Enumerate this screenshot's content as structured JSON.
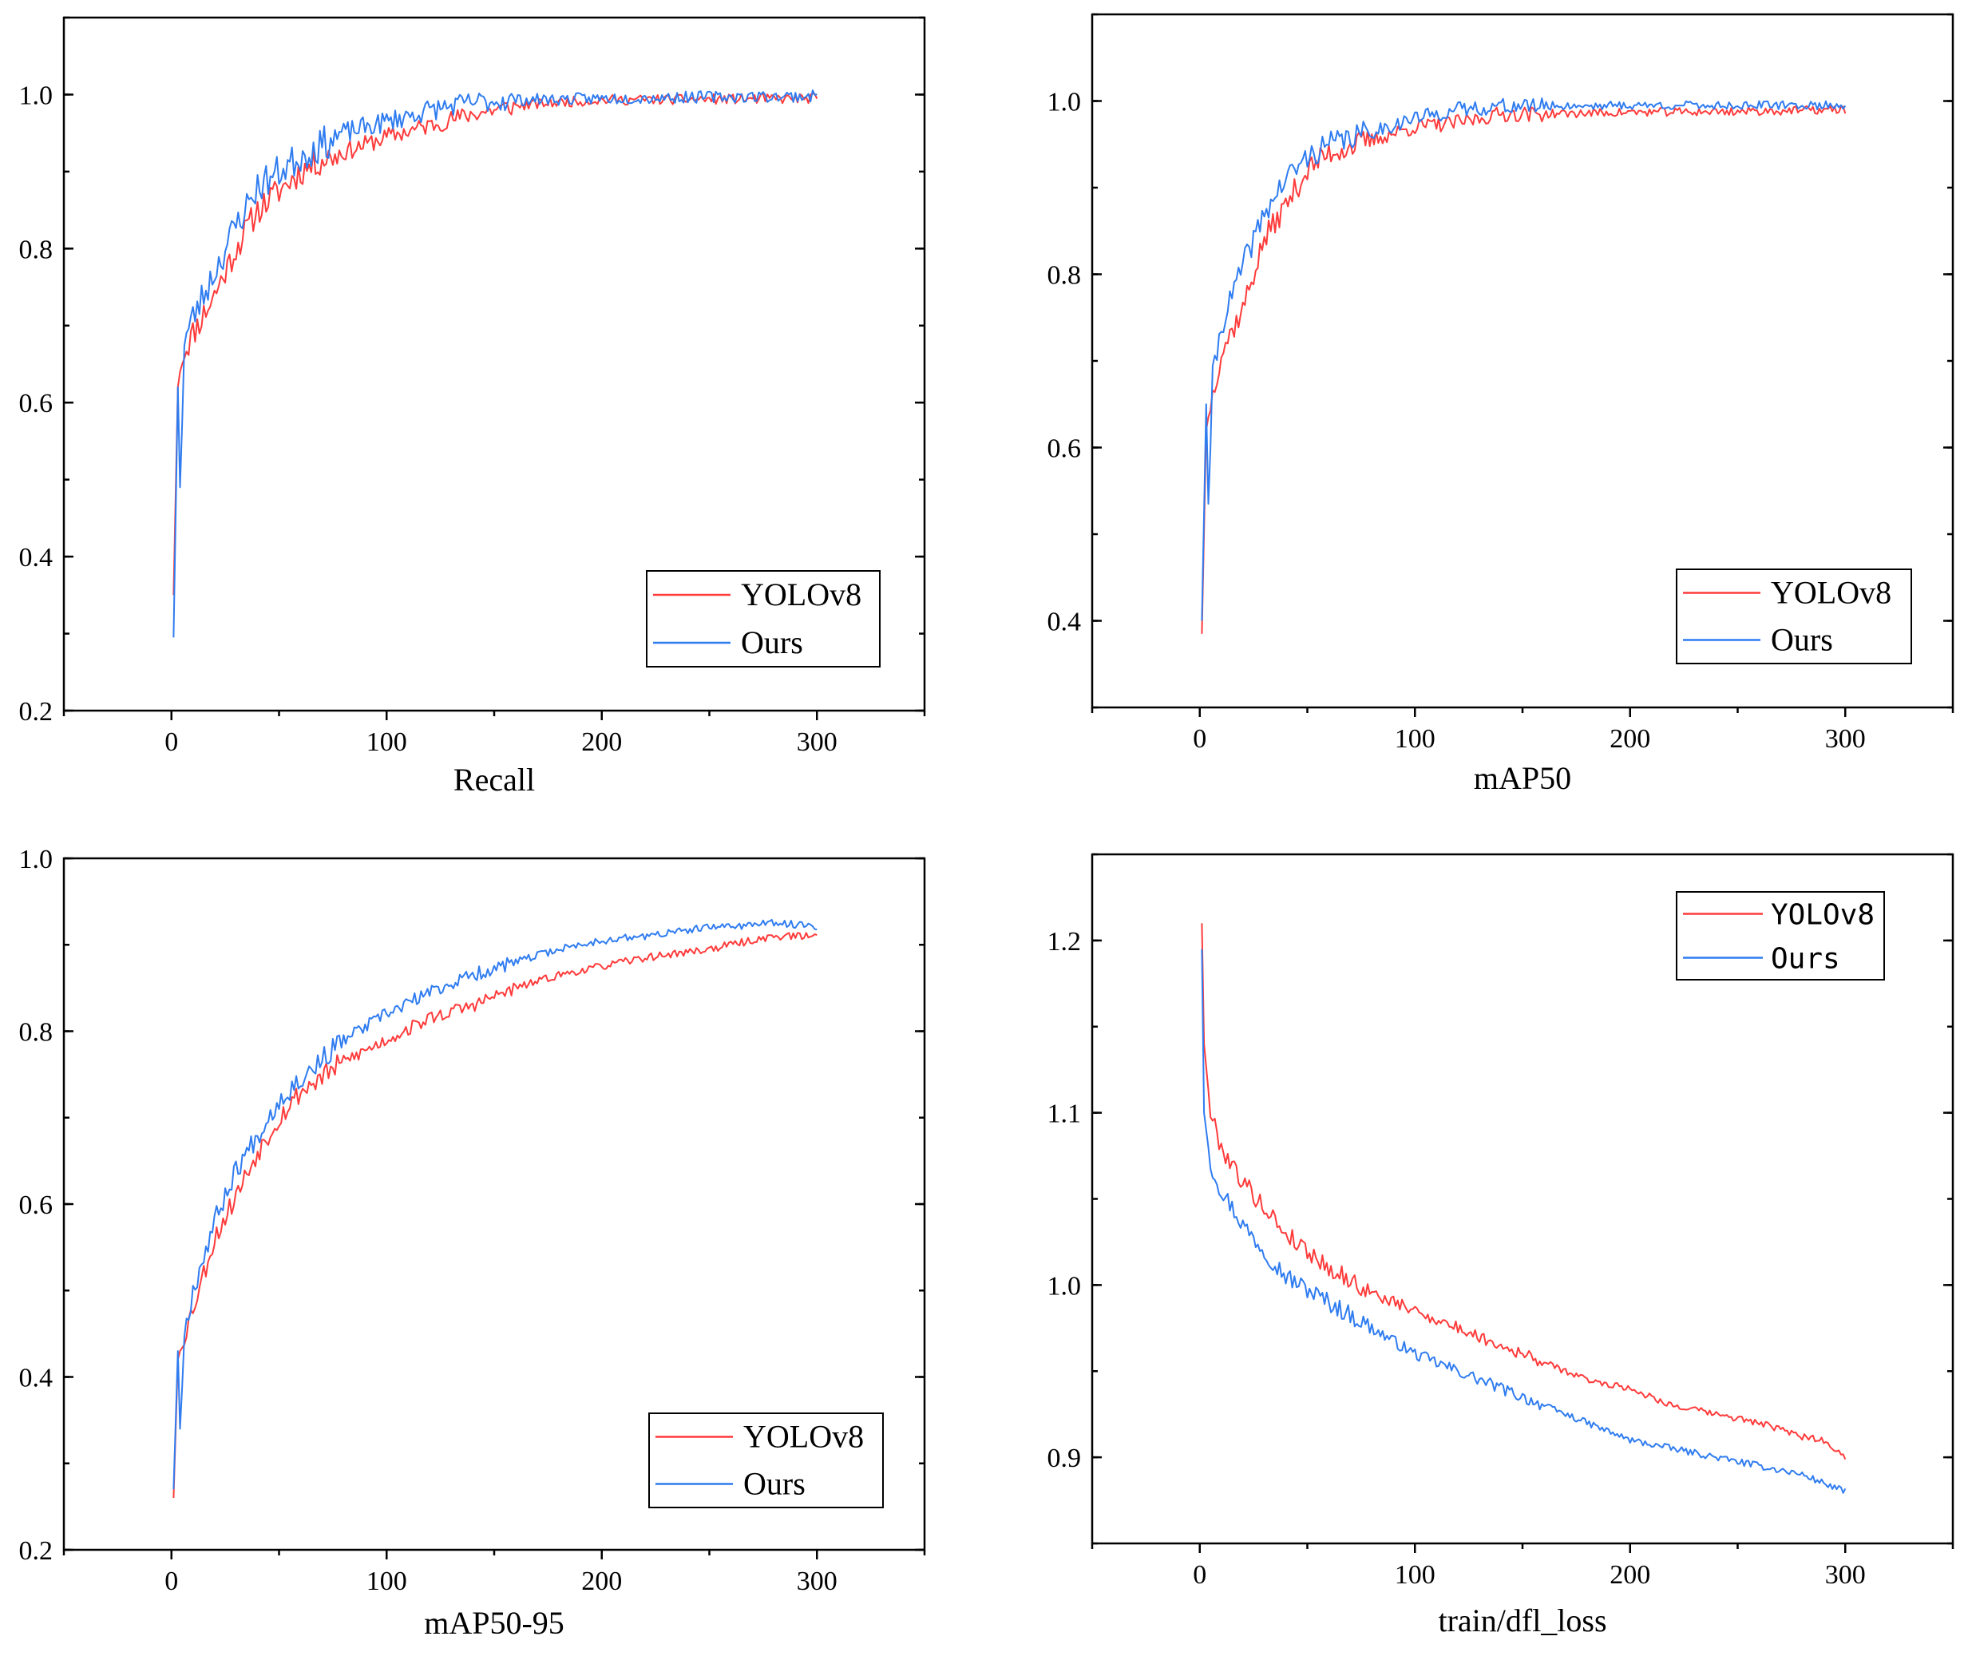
{
  "colors": {
    "yolov8": "#ff3b3b",
    "ours": "#2f7cf0",
    "axis": "#000000"
  },
  "chart_data": [
    {
      "type": "line",
      "xlabel": "Recall",
      "xlim": [
        -50,
        350
      ],
      "ylim": [
        0.2,
        1.1
      ],
      "xticks": [
        0,
        100,
        200,
        300
      ],
      "yticks": [
        0.2,
        0.4,
        0.6,
        0.8,
        1.0
      ],
      "legend_position": "bottom-right",
      "legend_font": "serif",
      "series": [
        {
          "name": "YOLOv8",
          "color": "#ff3b3b",
          "noise": 0.012,
          "seed": 11,
          "keypoints": [
            [
              1,
              0.35
            ],
            [
              3,
              0.62
            ],
            [
              5,
              0.66
            ],
            [
              10,
              0.69
            ],
            [
              20,
              0.74
            ],
            [
              30,
              0.8
            ],
            [
              40,
              0.85
            ],
            [
              50,
              0.875
            ],
            [
              60,
              0.9
            ],
            [
              70,
              0.915
            ],
            [
              80,
              0.925
            ],
            [
              100,
              0.945
            ],
            [
              120,
              0.96
            ],
            [
              140,
              0.975
            ],
            [
              160,
              0.985
            ],
            [
              180,
              0.99
            ],
            [
              200,
              0.993
            ],
            [
              250,
              0.994
            ],
            [
              300,
              0.995
            ]
          ]
        },
        {
          "name": "Ours",
          "color": "#2f7cf0",
          "noise": 0.014,
          "seed": 23,
          "keypoints": [
            [
              1,
              0.295
            ],
            [
              3,
              0.62
            ],
            [
              4,
              0.49
            ],
            [
              6,
              0.68
            ],
            [
              10,
              0.71
            ],
            [
              20,
              0.77
            ],
            [
              30,
              0.83
            ],
            [
              40,
              0.88
            ],
            [
              50,
              0.9
            ],
            [
              60,
              0.92
            ],
            [
              70,
              0.935
            ],
            [
              80,
              0.95
            ],
            [
              100,
              0.965
            ],
            [
              120,
              0.98
            ],
            [
              140,
              0.99
            ],
            [
              160,
              0.993
            ],
            [
              200,
              0.995
            ],
            [
              250,
              0.997
            ],
            [
              300,
              0.998
            ]
          ]
        }
      ]
    },
    {
      "type": "line",
      "xlabel": "mAP50",
      "xlim": [
        -50,
        350
      ],
      "ylim": [
        0.3,
        1.1
      ],
      "xticks": [
        0,
        100,
        200,
        300
      ],
      "yticks": [
        0.4,
        0.6,
        0.8,
        1.0
      ],
      "legend_position": "bottom-right",
      "legend_font": "serif",
      "series": [
        {
          "name": "YOLOv8",
          "color": "#ff3b3b",
          "noise": 0.009,
          "seed": 37,
          "keypoints": [
            [
              1,
              0.385
            ],
            [
              3,
              0.62
            ],
            [
              5,
              0.65
            ],
            [
              10,
              0.71
            ],
            [
              20,
              0.76
            ],
            [
              30,
              0.84
            ],
            [
              40,
              0.88
            ],
            [
              50,
              0.92
            ],
            [
              60,
              0.94
            ],
            [
              80,
              0.955
            ],
            [
              100,
              0.97
            ],
            [
              120,
              0.975
            ],
            [
              140,
              0.985
            ],
            [
              160,
              0.985
            ],
            [
              200,
              0.987
            ],
            [
              250,
              0.988
            ],
            [
              300,
              0.99
            ]
          ]
        },
        {
          "name": "Ours",
          "color": "#2f7cf0",
          "noise": 0.009,
          "seed": 41,
          "keypoints": [
            [
              1,
              0.4
            ],
            [
              3,
              0.65
            ],
            [
              4,
              0.535
            ],
            [
              6,
              0.68
            ],
            [
              10,
              0.74
            ],
            [
              20,
              0.81
            ],
            [
              30,
              0.87
            ],
            [
              40,
              0.91
            ],
            [
              50,
              0.935
            ],
            [
              60,
              0.95
            ],
            [
              80,
              0.965
            ],
            [
              100,
              0.98
            ],
            [
              120,
              0.99
            ],
            [
              140,
              0.994
            ],
            [
              200,
              0.995
            ],
            [
              300,
              0.995
            ]
          ]
        }
      ]
    },
    {
      "type": "line",
      "xlabel": "mAP50-95",
      "xlim": [
        -50,
        350
      ],
      "ylim": [
        0.2,
        1.0
      ],
      "xticks": [
        0,
        100,
        200,
        300
      ],
      "yticks": [
        0.2,
        0.4,
        0.6,
        0.8,
        1.0
      ],
      "legend_position": "bottom-right",
      "legend_font": "serif",
      "series": [
        {
          "name": "YOLOv8",
          "color": "#ff3b3b",
          "noise": 0.008,
          "seed": 53,
          "keypoints": [
            [
              1,
              0.26
            ],
            [
              3,
              0.42
            ],
            [
              5,
              0.44
            ],
            [
              10,
              0.48
            ],
            [
              20,
              0.56
            ],
            [
              30,
              0.61
            ],
            [
              40,
              0.66
            ],
            [
              50,
              0.7
            ],
            [
              60,
              0.73
            ],
            [
              80,
              0.765
            ],
            [
              100,
              0.79
            ],
            [
              120,
              0.815
            ],
            [
              140,
              0.83
            ],
            [
              160,
              0.85
            ],
            [
              180,
              0.865
            ],
            [
              200,
              0.875
            ],
            [
              220,
              0.885
            ],
            [
              250,
              0.895
            ],
            [
              280,
              0.91
            ],
            [
              300,
              0.91
            ]
          ]
        },
        {
          "name": "Ours",
          "color": "#2f7cf0",
          "noise": 0.008,
          "seed": 67,
          "keypoints": [
            [
              1,
              0.27
            ],
            [
              3,
              0.43
            ],
            [
              4,
              0.34
            ],
            [
              6,
              0.45
            ],
            [
              10,
              0.5
            ],
            [
              20,
              0.58
            ],
            [
              30,
              0.64
            ],
            [
              40,
              0.68
            ],
            [
              50,
              0.72
            ],
            [
              60,
              0.745
            ],
            [
              80,
              0.79
            ],
            [
              100,
              0.82
            ],
            [
              120,
              0.845
            ],
            [
              140,
              0.865
            ],
            [
              160,
              0.88
            ],
            [
              180,
              0.895
            ],
            [
              200,
              0.905
            ],
            [
              220,
              0.91
            ],
            [
              250,
              0.92
            ],
            [
              280,
              0.925
            ],
            [
              300,
              0.922
            ]
          ]
        }
      ]
    },
    {
      "type": "line",
      "xlabel": "train/dfl_loss",
      "xlim": [
        -50,
        350
      ],
      "ylim": [
        0.85,
        1.25
      ],
      "xticks": [
        0,
        100,
        200,
        300
      ],
      "yticks": [
        0.9,
        1.0,
        1.1,
        1.2
      ],
      "legend_position": "top-right",
      "legend_font": "mono",
      "series": [
        {
          "name": "YOLOv8",
          "color": "#ff3b3b",
          "noise": 0.0035,
          "seed": 79,
          "keypoints": [
            [
              1,
              1.21
            ],
            [
              2,
              1.14
            ],
            [
              5,
              1.1
            ],
            [
              10,
              1.08
            ],
            [
              20,
              1.06
            ],
            [
              30,
              1.045
            ],
            [
              40,
              1.03
            ],
            [
              60,
              1.01
            ],
            [
              80,
              0.995
            ],
            [
              100,
              0.985
            ],
            [
              120,
              0.975
            ],
            [
              140,
              0.965
            ],
            [
              160,
              0.955
            ],
            [
              180,
              0.945
            ],
            [
              200,
              0.94
            ],
            [
              220,
              0.93
            ],
            [
              240,
              0.925
            ],
            [
              260,
              0.92
            ],
            [
              280,
              0.912
            ],
            [
              290,
              0.91
            ],
            [
              300,
              0.9
            ]
          ]
        },
        {
          "name": "Ours",
          "color": "#2f7cf0",
          "noise": 0.0035,
          "seed": 97,
          "keypoints": [
            [
              1,
              1.195
            ],
            [
              2,
              1.1
            ],
            [
              5,
              1.07
            ],
            [
              10,
              1.055
            ],
            [
              20,
              1.035
            ],
            [
              30,
              1.02
            ],
            [
              40,
              1.005
            ],
            [
              60,
              0.99
            ],
            [
              80,
              0.975
            ],
            [
              100,
              0.96
            ],
            [
              120,
              0.95
            ],
            [
              140,
              0.94
            ],
            [
              160,
              0.93
            ],
            [
              180,
              0.92
            ],
            [
              200,
              0.91
            ],
            [
              220,
              0.905
            ],
            [
              240,
              0.9
            ],
            [
              260,
              0.895
            ],
            [
              280,
              0.89
            ],
            [
              300,
              0.88
            ]
          ]
        }
      ]
    }
  ]
}
